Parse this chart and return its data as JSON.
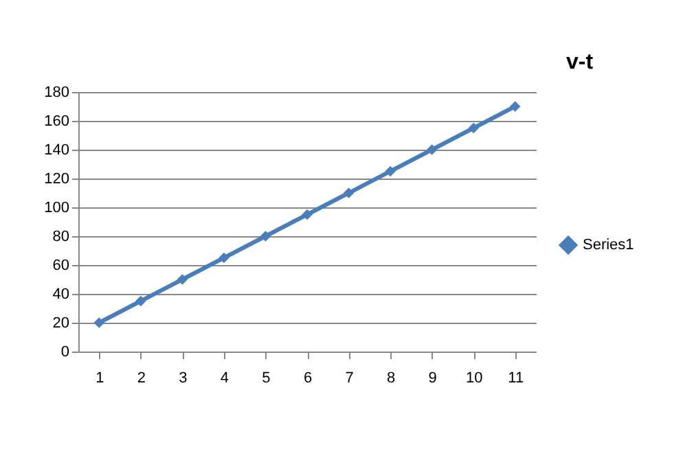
{
  "chart_data": {
    "type": "line",
    "title": "v-t",
    "categories": [
      "1",
      "2",
      "3",
      "4",
      "5",
      "6",
      "7",
      "8",
      "9",
      "10",
      "11"
    ],
    "series": [
      {
        "name": "Series1",
        "color": "#4a7ebb",
        "values": [
          20,
          35,
          50,
          65,
          80,
          95,
          110,
          125,
          140,
          155,
          170
        ]
      }
    ],
    "ylim": [
      0,
      180
    ],
    "yticks": [
      0,
      20,
      40,
      60,
      80,
      100,
      120,
      140,
      160,
      180
    ],
    "grid": "y",
    "legend": "right",
    "marker": "diamond",
    "line_style": "solid"
  }
}
